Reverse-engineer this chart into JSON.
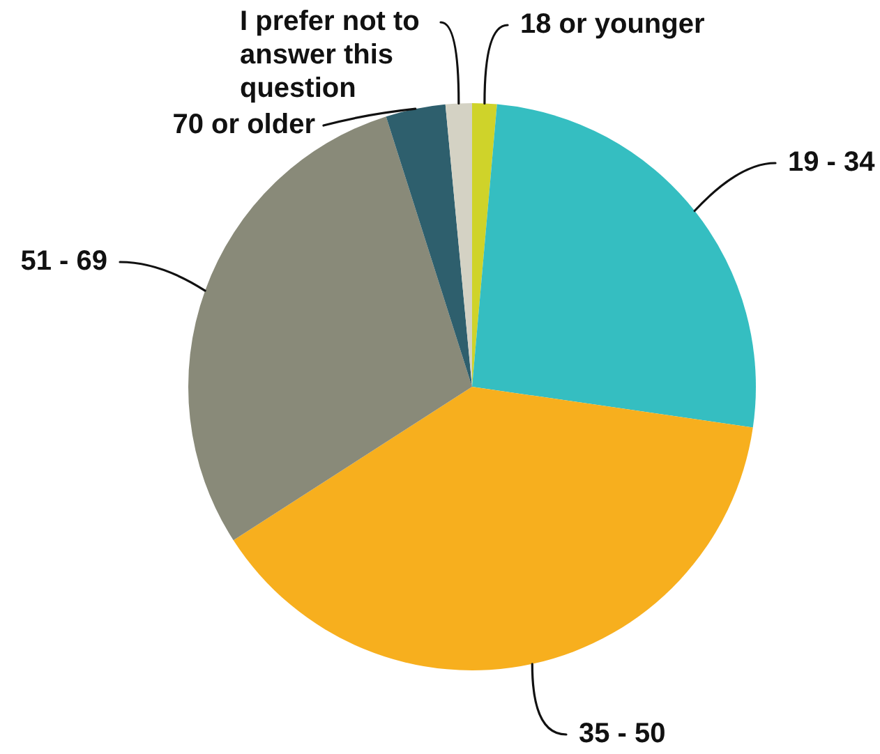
{
  "chart_data": {
    "type": "pie",
    "categories": [
      "18 or younger",
      "19 - 34",
      "35 - 50",
      "51 - 69",
      "70 or older",
      "I prefer not to answer this question"
    ],
    "values": [
      1.4,
      25.9,
      38.6,
      29.2,
      3.4,
      1.5
    ],
    "colors": [
      "#cfd32a",
      "#35bec1",
      "#f7af1e",
      "#898a79",
      "#2e5f6d",
      "#d4d2c4"
    ]
  }
}
